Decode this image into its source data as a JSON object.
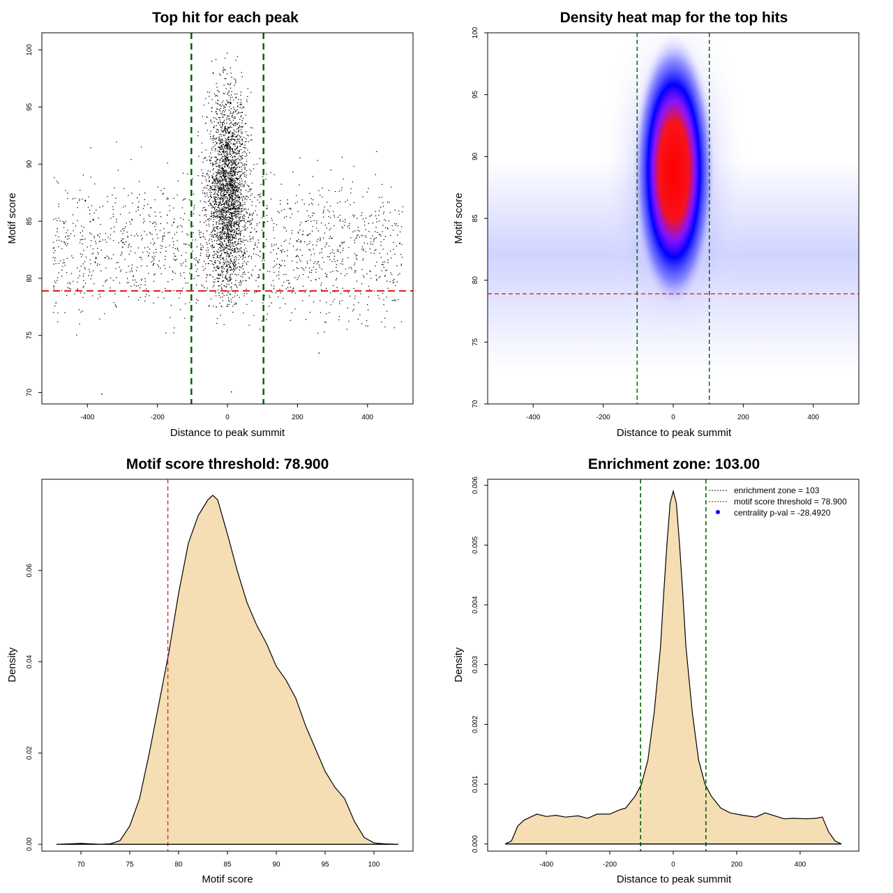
{
  "chart_data": [
    {
      "id": "scatter",
      "type": "scatter",
      "title": "Top hit for each peak",
      "xlabel": "Distance to peak summit",
      "ylabel": "Motif score",
      "xlim": [
        -530,
        530
      ],
      "ylim": [
        69,
        101.5
      ],
      "xticks": [
        -400,
        -200,
        0,
        200,
        400
      ],
      "yticks": [
        70,
        75,
        80,
        85,
        90,
        95,
        100
      ],
      "vlines": [
        -103,
        103
      ],
      "hline": 78.9,
      "colors": {
        "points": "#000000",
        "vline": "#006400",
        "hline": "#e31a1c"
      },
      "point_groups": [
        {
          "n": 1500,
          "x_dist": "uniform",
          "x_range": [
            -500,
            500
          ],
          "y_mean": 82.5,
          "y_sd": 3.0,
          "y_range": [
            75,
            92
          ]
        },
        {
          "n": 2600,
          "x_dist": "normal",
          "x_mean": 0,
          "x_sd": 28,
          "y_mean": 87.5,
          "y_sd": 4.2,
          "y_range": [
            77.5,
            100
          ]
        }
      ],
      "outliers": [
        {
          "x": -360,
          "y": 69.9
        },
        {
          "x": 10,
          "y": 70.1
        },
        {
          "x": 260,
          "y": 73.5
        }
      ]
    },
    {
      "id": "heatmap",
      "type": "heatmap",
      "title": "Density heat map for the top hits",
      "xlabel": "Distance to peak summit",
      "ylabel": "Motif score",
      "xlim": [
        -530,
        530
      ],
      "ylim": [
        70,
        100
      ],
      "xticks": [
        -400,
        -200,
        0,
        200,
        400
      ],
      "yticks": [
        70,
        75,
        80,
        85,
        90,
        95,
        100
      ],
      "vlines": [
        -103,
        103
      ],
      "hline": 78.9,
      "colors": {
        "low": "#ffffff",
        "mid": "#0000ff",
        "high": "#ff0000",
        "vline": "#006400",
        "hline": "#e31a1c"
      },
      "peak": {
        "x": 0,
        "y": 88
      }
    },
    {
      "id": "score_density",
      "type": "area",
      "title": "Motif score threshold: 78.900",
      "xlabel": "Motif score",
      "ylabel": "Density",
      "xlim": [
        66,
        104
      ],
      "ylim": [
        -0.0015,
        0.08
      ],
      "xticks": [
        70,
        75,
        80,
        85,
        90,
        95,
        100
      ],
      "yticks": [
        0,
        0.02,
        0.04,
        0.06
      ],
      "ytick_labels": [
        "0.00",
        "0.02",
        "0.04",
        "0.06"
      ],
      "vline": 78.9,
      "colors": {
        "fill": "#f5deb3",
        "line": "#000000",
        "vline": "#e31a1c"
      },
      "x": [
        67.5,
        69,
        70,
        71,
        72,
        73,
        74,
        75,
        76,
        77,
        78,
        79,
        80,
        81,
        82,
        83,
        83.5,
        84,
        85,
        86,
        87,
        88,
        89,
        90,
        91,
        92,
        93,
        94,
        95,
        96,
        97,
        98,
        99,
        100,
        101,
        102.5
      ],
      "y": [
        0,
        0.0001,
        0.0002,
        0.0001,
        0,
        0.0001,
        0.0008,
        0.004,
        0.01,
        0.02,
        0.031,
        0.042,
        0.055,
        0.066,
        0.072,
        0.0755,
        0.0765,
        0.0755,
        0.068,
        0.06,
        0.053,
        0.048,
        0.044,
        0.039,
        0.036,
        0.032,
        0.026,
        0.021,
        0.016,
        0.0125,
        0.01,
        0.005,
        0.0015,
        0.0003,
        0.0001,
        0
      ]
    },
    {
      "id": "distance_density",
      "type": "area",
      "title": "Enrichment zone: 103.00",
      "xlabel": "Distance to peak summit",
      "ylabel": "Density",
      "xlim": [
        -585,
        585
      ],
      "ylim": [
        -0.00012,
        0.0061
      ],
      "xticks": [
        -400,
        -200,
        0,
        200,
        400
      ],
      "yticks": [
        0,
        0.001,
        0.002,
        0.003,
        0.004,
        0.005,
        0.006
      ],
      "ytick_labels": [
        "0.000",
        "0.001",
        "0.002",
        "0.003",
        "0.004",
        "0.005",
        "0.006"
      ],
      "vlines": [
        -103,
        103
      ],
      "colors": {
        "fill": "#f5deb3",
        "line": "#000000",
        "vline": "#006400",
        "legend_zone": "#006400",
        "legend_threshold": "#e31a1c",
        "legend_dot": "#0000ff"
      },
      "x": [
        -530,
        -510,
        -490,
        -470,
        -450,
        -430,
        -400,
        -370,
        -340,
        -300,
        -270,
        -240,
        -200,
        -170,
        -150,
        -120,
        -100,
        -80,
        -60,
        -40,
        -30,
        -20,
        -10,
        0,
        10,
        20,
        30,
        40,
        60,
        80,
        100,
        120,
        150,
        180,
        220,
        260,
        290,
        320,
        350,
        380,
        420,
        450,
        470,
        490,
        510,
        530
      ],
      "y": [
        0,
        5e-05,
        0.0003,
        0.0004,
        0.00045,
        0.0005,
        0.00046,
        0.00048,
        0.00045,
        0.00047,
        0.00043,
        0.0005,
        0.0005,
        0.00057,
        0.0006,
        0.0008,
        0.001,
        0.0014,
        0.0022,
        0.0033,
        0.0042,
        0.005,
        0.0057,
        0.0059,
        0.0057,
        0.005,
        0.0042,
        0.0033,
        0.0022,
        0.0014,
        0.001,
        0.0008,
        0.0006,
        0.00052,
        0.00048,
        0.00045,
        0.00052,
        0.00047,
        0.00042,
        0.00043,
        0.00042,
        0.00043,
        0.00045,
        0.0002,
        5e-05,
        0
      ]
    }
  ],
  "legend": {
    "zone_label": "enrichment zone = 103",
    "threshold_label": "motif score threshold = 78.900",
    "pval_label": "centrality p-val = -28.4920"
  }
}
